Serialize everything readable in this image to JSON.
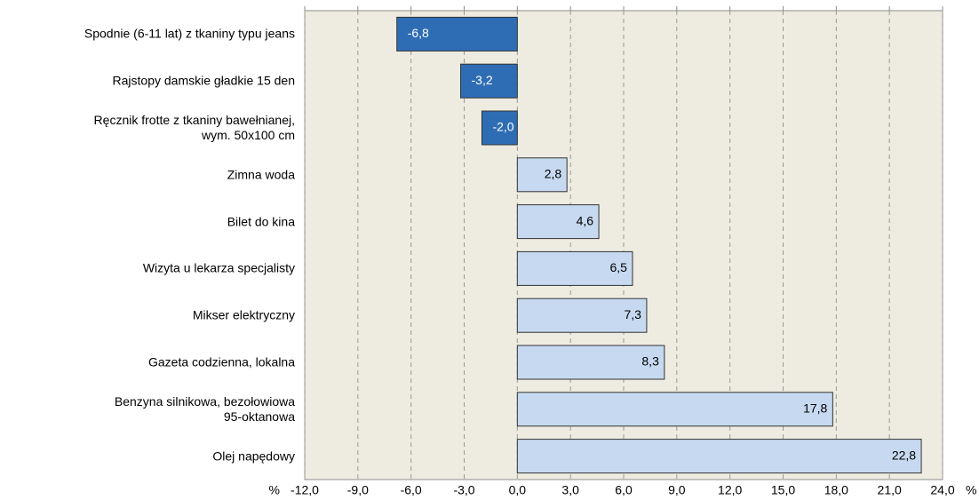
{
  "chart_data": {
    "type": "barh",
    "categories": [
      "Spodnie (6-11 lat) z tkaniny typu jeans",
      "Rajstopy damskie gładkie 15 den",
      "Ręcznik frotte z tkaniny bawełnianej,\nwym. 50x100 cm",
      "Zimna woda",
      "Bilet do kina",
      "Wizyta u lekarza specjalisty",
      "Mikser elektryczny",
      "Gazeta codzienna, lokalna",
      "Benzyna silnikowa, bezołowiowa\n95-oktanowa",
      "Olej napędowy"
    ],
    "values": [
      -6.8,
      -3.2,
      -2.0,
      2.8,
      4.6,
      6.5,
      7.3,
      8.3,
      17.8,
      22.8
    ],
    "value_labels": [
      "-6,8",
      "-3,2",
      "-2,0",
      "2,8",
      "4,6",
      "6,5",
      "7,3",
      "8,3",
      "17,8",
      "22,8"
    ],
    "negative_color": "#2e6db4",
    "positive_color": "#c6d9f0",
    "x_unit": "%",
    "xlim": [
      -12,
      24
    ],
    "xticks": [
      {
        "value": -12,
        "label": "-12,0"
      },
      {
        "value": -9,
        "label": "-9,0"
      },
      {
        "value": -6,
        "label": "-6,0"
      },
      {
        "value": -3,
        "label": "-3,0"
      },
      {
        "value": 0,
        "label": "0,0"
      },
      {
        "value": 3,
        "label": "3,0"
      },
      {
        "value": 6,
        "label": "6,0"
      },
      {
        "value": 9,
        "label": "9,0"
      },
      {
        "value": 12,
        "label": "12,0"
      },
      {
        "value": 15,
        "label": "15,0"
      },
      {
        "value": 18,
        "label": "18,0"
      },
      {
        "value": 21,
        "label": "21,0"
      },
      {
        "value": 24,
        "label": "24,0"
      }
    ],
    "grid": true
  }
}
